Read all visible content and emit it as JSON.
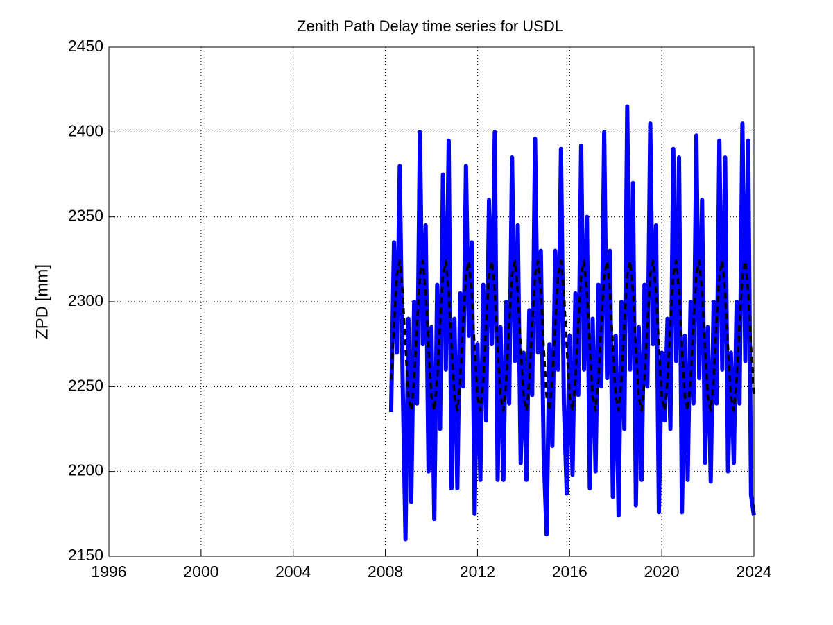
{
  "chart_data": {
    "type": "line",
    "title": "Zenith Path Delay time series for USDL",
    "ylabel": "ZPD [mm]",
    "xlim": [
      1996,
      2024
    ],
    "xticks": [
      1996,
      2000,
      2004,
      2008,
      2012,
      2016,
      2020,
      2024
    ],
    "ylim": [
      2150,
      2450
    ],
    "yticks": [
      2150,
      2200,
      2250,
      2300,
      2350,
      2400,
      2450
    ],
    "grid": true,
    "x": [
      2008.25,
      2008.375,
      2008.5,
      2008.625,
      2008.75,
      2008.875,
      2009,
      2009.125,
      2009.25,
      2009.375,
      2009.5,
      2009.625,
      2009.75,
      2009.875,
      2010,
      2010.125,
      2010.25,
      2010.375,
      2010.5,
      2010.625,
      2010.75,
      2010.875,
      2011,
      2011.125,
      2011.25,
      2011.375,
      2011.5,
      2011.625,
      2011.75,
      2011.875,
      2012,
      2012.125,
      2012.25,
      2012.375,
      2012.5,
      2012.625,
      2012.75,
      2012.875,
      2013,
      2013.125,
      2013.25,
      2013.375,
      2013.5,
      2013.625,
      2013.75,
      2013.875,
      2014,
      2014.125,
      2014.25,
      2014.375,
      2014.5,
      2014.625,
      2014.75,
      2014.875,
      2015,
      2015.125,
      2015.25,
      2015.375,
      2015.5,
      2015.625,
      2015.75,
      2015.875,
      2016,
      2016.125,
      2016.25,
      2016.375,
      2016.5,
      2016.625,
      2016.75,
      2016.875,
      2017,
      2017.125,
      2017.25,
      2017.375,
      2017.5,
      2017.625,
      2017.75,
      2017.875,
      2018,
      2018.125,
      2018.25,
      2018.375,
      2018.5,
      2018.625,
      2018.75,
      2018.875,
      2019,
      2019.125,
      2019.25,
      2019.375,
      2019.5,
      2019.625,
      2019.75,
      2019.875,
      2020,
      2020.125,
      2020.25,
      2020.375,
      2020.5,
      2020.625,
      2020.75,
      2020.875,
      2021,
      2021.125,
      2021.25,
      2021.375,
      2021.5,
      2021.625,
      2021.75,
      2021.875,
      2022,
      2022.125,
      2022.25,
      2022.375,
      2022.5,
      2022.625,
      2022.75,
      2022.875,
      2023,
      2023.125,
      2023.25,
      2023.375,
      2023.5,
      2023.625,
      2023.75,
      2023.875,
      2024
    ],
    "series": [
      {
        "color": "#0000ff",
        "width": 6,
        "dashed": false,
        "values": [
          2235,
          2335,
          2270,
          2380,
          2255,
          2160,
          2290,
          2182,
          2300,
          2240,
          2400,
          2275,
          2345,
          2200,
          2285,
          2172,
          2310,
          2225,
          2375,
          2260,
          2395,
          2190,
          2290,
          2190,
          2305,
          2250,
          2380,
          2280,
          2335,
          2175,
          2275,
          2195,
          2310,
          2230,
          2360,
          2275,
          2400,
          2195,
          2285,
          2195,
          2300,
          2240,
          2385,
          2265,
          2345,
          2205,
          2270,
          2195,
          2295,
          2245,
          2396,
          2270,
          2330,
          2210,
          2163,
          2275,
          2215,
          2330,
          2260,
          2390,
          2240,
          2187,
          2280,
          2198,
          2305,
          2245,
          2392,
          2260,
          2350,
          2190,
          2290,
          2200,
          2310,
          2250,
          2400,
          2255,
          2330,
          2185,
          2280,
          2174,
          2300,
          2225,
          2415,
          2260,
          2370,
          2180,
          2285,
          2195,
          2310,
          2250,
          2405,
          2275,
          2345,
          2176,
          2270,
          2230,
          2290,
          2225,
          2390,
          2265,
          2385,
          2176,
          2280,
          2195,
          2300,
          2240,
          2398,
          2255,
          2360,
          2205,
          2285,
          2194,
          2300,
          2240,
          2395,
          2260,
          2385,
          2200,
          2270,
          2205,
          2300,
          2240,
          2405,
          2265,
          2395,
          2186,
          2174
        ]
      },
      {
        "color": "#000000",
        "width": 3.5,
        "dashed": true,
        "values": [
          2254,
          2287,
          2316,
          2324,
          2306,
          2273,
          2244,
          2236,
          2254,
          2287,
          2316,
          2324,
          2306,
          2273,
          2244,
          2236,
          2254,
          2287,
          2316,
          2324,
          2306,
          2273,
          2244,
          2236,
          2254,
          2287,
          2316,
          2324,
          2306,
          2273,
          2244,
          2236,
          2254,
          2287,
          2316,
          2324,
          2306,
          2273,
          2244,
          2236,
          2254,
          2287,
          2316,
          2324,
          2306,
          2273,
          2244,
          2236,
          2254,
          2287,
          2316,
          2324,
          2306,
          2273,
          2244,
          2236,
          2254,
          2287,
          2316,
          2324,
          2306,
          2273,
          2244,
          2236,
          2254,
          2287,
          2316,
          2324,
          2306,
          2273,
          2244,
          2236,
          2254,
          2287,
          2316,
          2324,
          2306,
          2273,
          2244,
          2236,
          2254,
          2287,
          2316,
          2324,
          2306,
          2273,
          2244,
          2236,
          2254,
          2287,
          2316,
          2324,
          2306,
          2273,
          2244,
          2236,
          2254,
          2287,
          2316,
          2324,
          2306,
          2273,
          2244,
          2236,
          2254,
          2287,
          2316,
          2324,
          2306,
          2273,
          2244,
          2236,
          2254,
          2287,
          2316,
          2324,
          2306,
          2273,
          2244,
          2236,
          2254,
          2287,
          2316,
          2324,
          2306,
          2273,
          2244
        ]
      }
    ]
  }
}
